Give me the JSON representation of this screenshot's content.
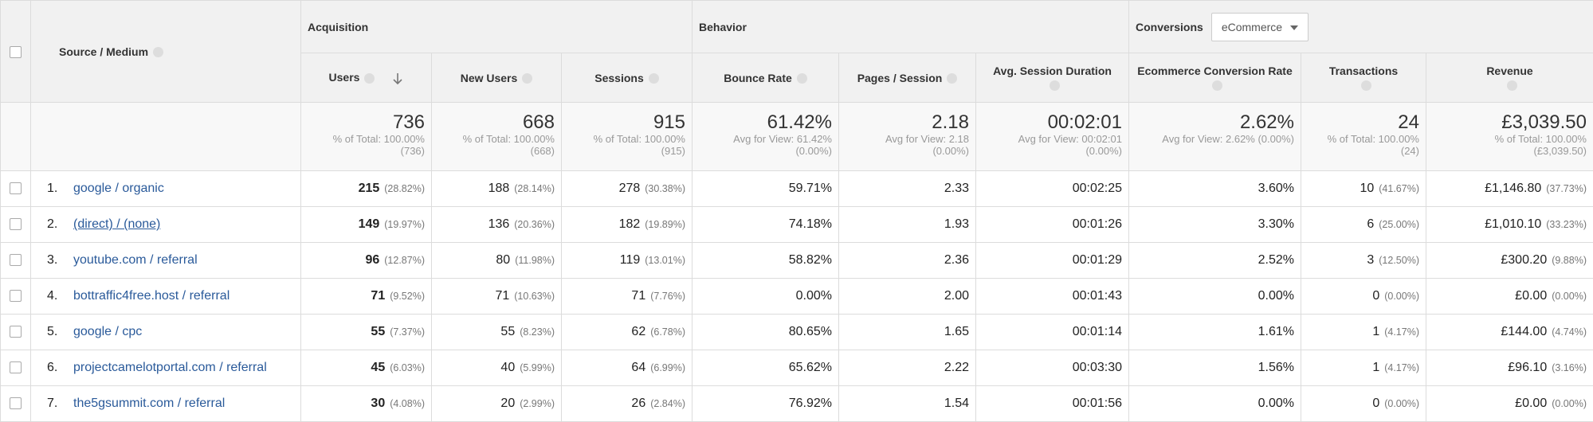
{
  "header": {
    "source_medium": "Source / Medium",
    "groups": {
      "acquisition": "Acquisition",
      "behavior": "Behavior",
      "conversions": "Conversions",
      "conversions_dropdown": "eCommerce"
    },
    "columns": [
      "Users",
      "New Users",
      "Sessions",
      "Bounce Rate",
      "Pages / Session",
      "Avg. Session Duration",
      "Ecommerce Conversion Rate",
      "Transactions",
      "Revenue"
    ]
  },
  "totals": [
    {
      "value": "736",
      "sub": [
        "% of Total: 100.00%",
        "(736)"
      ]
    },
    {
      "value": "668",
      "sub": [
        "% of Total: 100.00%",
        "(668)"
      ]
    },
    {
      "value": "915",
      "sub": [
        "% of Total: 100.00%",
        "(915)"
      ]
    },
    {
      "value": "61.42%",
      "sub": [
        "Avg for View: 61.42%",
        "(0.00%)"
      ]
    },
    {
      "value": "2.18",
      "sub": [
        "Avg for View: 2.18",
        "(0.00%)"
      ]
    },
    {
      "value": "00:02:01",
      "sub": [
        "Avg for View: 00:02:01",
        "(0.00%)"
      ]
    },
    {
      "value": "2.62%",
      "sub": [
        "Avg for View: 2.62% (0.00%)"
      ]
    },
    {
      "value": "24",
      "sub": [
        "% of Total: 100.00%",
        "(24)"
      ]
    },
    {
      "value": "£3,039.50",
      "sub": [
        "% of Total: 100.00%",
        "(£3,039.50)"
      ]
    }
  ],
  "rows": [
    {
      "index": "1.",
      "source": "google / organic",
      "cells": [
        [
          "215",
          "(28.82%)"
        ],
        [
          "188",
          "(28.14%)"
        ],
        [
          "278",
          "(30.38%)"
        ],
        [
          "59.71%"
        ],
        [
          "2.33"
        ],
        [
          "00:02:25"
        ],
        [
          "3.60%"
        ],
        [
          "10",
          "(41.67%)"
        ],
        [
          "£1,146.80",
          "(37.73%)"
        ]
      ]
    },
    {
      "index": "2.",
      "source": "(direct) / (none)",
      "cells": [
        [
          "149",
          "(19.97%)"
        ],
        [
          "136",
          "(20.36%)"
        ],
        [
          "182",
          "(19.89%)"
        ],
        [
          "74.18%"
        ],
        [
          "1.93"
        ],
        [
          "00:01:26"
        ],
        [
          "3.30%"
        ],
        [
          "6",
          "(25.00%)"
        ],
        [
          "£1,010.10",
          "(33.23%)"
        ]
      ]
    },
    {
      "index": "3.",
      "source": "youtube.com / referral",
      "cells": [
        [
          "96",
          "(12.87%)"
        ],
        [
          "80",
          "(11.98%)"
        ],
        [
          "119",
          "(13.01%)"
        ],
        [
          "58.82%"
        ],
        [
          "2.36"
        ],
        [
          "00:01:29"
        ],
        [
          "2.52%"
        ],
        [
          "3",
          "(12.50%)"
        ],
        [
          "£300.20",
          "(9.88%)"
        ]
      ]
    },
    {
      "index": "4.",
      "source": "bottraffic4free.host / referral",
      "cells": [
        [
          "71",
          "(9.52%)"
        ],
        [
          "71",
          "(10.63%)"
        ],
        [
          "71",
          "(7.76%)"
        ],
        [
          "0.00%"
        ],
        [
          "2.00"
        ],
        [
          "00:01:43"
        ],
        [
          "0.00%"
        ],
        [
          "0",
          "(0.00%)"
        ],
        [
          "£0.00",
          "(0.00%)"
        ]
      ]
    },
    {
      "index": "5.",
      "source": "google / cpc",
      "cells": [
        [
          "55",
          "(7.37%)"
        ],
        [
          "55",
          "(8.23%)"
        ],
        [
          "62",
          "(6.78%)"
        ],
        [
          "80.65%"
        ],
        [
          "1.65"
        ],
        [
          "00:01:14"
        ],
        [
          "1.61%"
        ],
        [
          "1",
          "(4.17%)"
        ],
        [
          "£144.00",
          "(4.74%)"
        ]
      ]
    },
    {
      "index": "6.",
      "source": "projectcamelotportal.com / referral",
      "cells": [
        [
          "45",
          "(6.03%)"
        ],
        [
          "40",
          "(5.99%)"
        ],
        [
          "64",
          "(6.99%)"
        ],
        [
          "65.62%"
        ],
        [
          "2.22"
        ],
        [
          "00:03:30"
        ],
        [
          "1.56%"
        ],
        [
          "1",
          "(4.17%)"
        ],
        [
          "£96.10",
          "(3.16%)"
        ]
      ]
    },
    {
      "index": "7.",
      "source": "the5gsummit.com / referral",
      "cells": [
        [
          "30",
          "(4.08%)"
        ],
        [
          "20",
          "(2.99%)"
        ],
        [
          "26",
          "(2.84%)"
        ],
        [
          "76.92%"
        ],
        [
          "1.54"
        ],
        [
          "00:01:56"
        ],
        [
          "0.00%"
        ],
        [
          "0",
          "(0.00%)"
        ],
        [
          "£0.00",
          "(0.00%)"
        ]
      ]
    }
  ]
}
